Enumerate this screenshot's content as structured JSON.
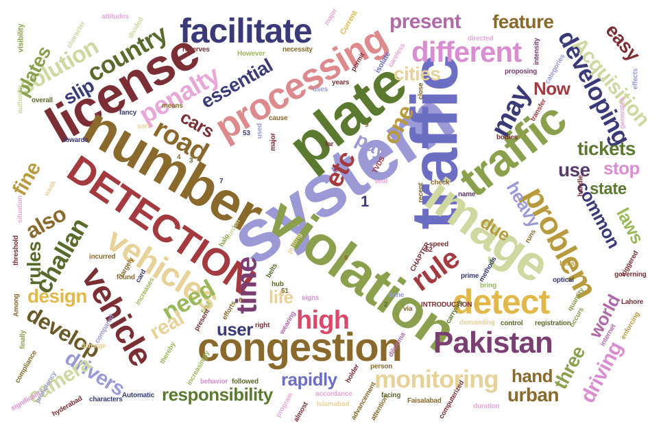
{
  "words": [
    {
      "text": "system",
      "color": "#9b9ad6"
    },
    {
      "text": "traffic",
      "color": "#6b6ec2"
    },
    {
      "text": "plate",
      "color": "#5b7a30"
    },
    {
      "text": "license",
      "color": "#7b2f35"
    },
    {
      "text": "number",
      "color": "#8a6a2c"
    },
    {
      "text": "violation",
      "color": "#8aa04d"
    },
    {
      "text": "DETECTION",
      "color": "#a33a3f"
    },
    {
      "text": "congestion",
      "color": "#8a6a2c"
    },
    {
      "text": "image",
      "color": "#cfd8a0"
    },
    {
      "text": "facilitate",
      "color": "#3a3a78"
    },
    {
      "text": "processing",
      "color": "#dd8a8f"
    },
    {
      "text": "vehicles",
      "color": "#e7d29a"
    },
    {
      "text": "vehicle",
      "color": "#7b2f35"
    },
    {
      "text": "traffic",
      "color": "#8aa04d"
    },
    {
      "text": "Pakistan",
      "color": "#7b3e73"
    },
    {
      "text": "detect",
      "color": "#e2b84a"
    },
    {
      "text": "problem",
      "color": "#b89b3e"
    },
    {
      "text": "different",
      "color": "#d88ed0"
    },
    {
      "text": "road",
      "color": "#8a6a2c"
    },
    {
      "text": "penalty",
      "color": "#e7a8d8"
    },
    {
      "text": "rule",
      "color": "#a33a3f"
    },
    {
      "text": "time",
      "color": "#7b3e73"
    },
    {
      "text": "challan",
      "color": "#5b6a2a"
    },
    {
      "text": "monitoring",
      "color": "#e7d29a"
    },
    {
      "text": "country",
      "color": "#5b6a2a"
    },
    {
      "text": "solution",
      "color": "#cfd8a0"
    },
    {
      "text": "developing",
      "color": "#3a3a78"
    },
    {
      "text": "may",
      "color": "#3a3a78"
    },
    {
      "text": "Acquisition",
      "color": "#cfd8a0"
    },
    {
      "text": "high",
      "color": "#d94a6a"
    },
    {
      "text": "need",
      "color": "#9bb85a"
    },
    {
      "text": "develop",
      "color": "#6b5a28"
    },
    {
      "text": "etc",
      "color": "#a33a3f"
    },
    {
      "text": "essential",
      "color": "#3a3a78"
    },
    {
      "text": "responsibility",
      "color": "#5b7a30"
    },
    {
      "text": "rapidly",
      "color": "#6b6ec2"
    },
    {
      "text": "drivers",
      "color": "#9b9ad6"
    },
    {
      "text": "camera",
      "color": "#cfd8a0"
    },
    {
      "text": "design",
      "color": "#e2b84a"
    },
    {
      "text": "fine",
      "color": "#b89b3e"
    },
    {
      "text": "also",
      "color": "#8a6a2c"
    },
    {
      "text": "rules",
      "color": "#5b6a2a"
    },
    {
      "text": "present",
      "color": "#b06aa8"
    },
    {
      "text": "feature",
      "color": "#8a6a2c"
    },
    {
      "text": "cities",
      "color": "#e7d29a"
    },
    {
      "text": "one",
      "color": "#b89b3e"
    },
    {
      "text": "pay",
      "color": "#9b9ad6"
    },
    {
      "text": "Now",
      "color": "#a33a3f"
    },
    {
      "text": "easy",
      "color": "#7b2f35"
    },
    {
      "text": "tickets",
      "color": "#5b7a30"
    },
    {
      "text": "use",
      "color": "#5a3a6a"
    },
    {
      "text": "stop",
      "color": "#d88ed0"
    },
    {
      "text": "state",
      "color": "#5b7a30"
    },
    {
      "text": "heavy",
      "color": "#9b9ad6"
    },
    {
      "text": "common",
      "color": "#3a3a78"
    },
    {
      "text": "laws",
      "color": "#9bb85a"
    },
    {
      "text": "due",
      "color": "#b89b3e"
    },
    {
      "text": "plates",
      "color": "#8aa04d"
    },
    {
      "text": "slip",
      "color": "#3a3a78"
    },
    {
      "text": "cars",
      "color": "#7b2f35"
    },
    {
      "text": "real",
      "color": "#e7d29a"
    },
    {
      "text": "life",
      "color": "#e7d29a"
    },
    {
      "text": "user",
      "color": "#3a3a78"
    },
    {
      "text": "hand",
      "color": "#8a6a2c"
    },
    {
      "text": "urban",
      "color": "#8a6a2c"
    },
    {
      "text": "three",
      "color": "#8aa04d"
    },
    {
      "text": "driving",
      "color": "#d88ed0"
    },
    {
      "text": "world",
      "color": "#b06aa8"
    },
    {
      "text": "1",
      "color": "#3a3a78"
    },
    {
      "text": "attitudes",
      "color": "#e7a8d8"
    },
    {
      "text": "divided",
      "color": "#cfd8a0"
    },
    {
      "text": "character",
      "color": "#cfd8a0"
    },
    {
      "text": "visibility",
      "color": "#8aa04d"
    },
    {
      "text": "major",
      "color": "#e7a8d8"
    },
    {
      "text": "Current",
      "color": "#e2b84a"
    },
    {
      "text": "reserves",
      "color": "#7b2f35"
    },
    {
      "text": "However",
      "color": "#9bb85a"
    },
    {
      "text": "necessity",
      "color": "#8a6a2c"
    },
    {
      "text": "permit",
      "color": "#7b2f35"
    },
    {
      "text": "isolate",
      "color": "#6b6ec2"
    },
    {
      "text": "careless",
      "color": "#e7a8d8"
    },
    {
      "text": "directed",
      "color": "#e7a8d8"
    },
    {
      "text": "intensity",
      "color": "#7b3e73"
    },
    {
      "text": "proposing",
      "color": "#7b3e73"
    },
    {
      "text": "categories",
      "color": "#9b9ad6"
    },
    {
      "text": "fancy",
      "color": "#3a3a78"
    },
    {
      "text": "means",
      "color": "#8a6a2c"
    },
    {
      "text": "towards",
      "color": "#3a3a78"
    },
    {
      "text": "bodies",
      "color": "#7b2f35"
    },
    {
      "text": "transfer",
      "color": "#a33a3f"
    },
    {
      "text": "overall",
      "color": "#5b6a2a"
    },
    {
      "text": "authority",
      "color": "#cfd8a0"
    },
    {
      "text": "uses",
      "color": "#9b9ad6"
    },
    {
      "text": "years",
      "color": "#7b2f35"
    },
    {
      "text": "close",
      "color": "#8a6a2c"
    },
    {
      "text": "check",
      "color": "#8a6a2c"
    },
    {
      "text": "name",
      "color": "#5a3a6a"
    },
    {
      "text": "handle",
      "color": "#7b2f35"
    },
    {
      "text": "generates",
      "color": "#e7a8d8"
    },
    {
      "text": "effects",
      "color": "#9b9ad6"
    },
    {
      "text": "sort",
      "color": "#e7d29a"
    },
    {
      "text": "cause",
      "color": "#8a6a2c"
    },
    {
      "text": "used",
      "color": "#9b9ad6"
    },
    {
      "text": "major",
      "color": "#7b2f35"
    },
    {
      "text": "far",
      "color": "#7b2f35"
    },
    {
      "text": "seat",
      "color": "#e7a8d8"
    },
    {
      "text": "TVDS",
      "color": "#a33a3f"
    },
    {
      "text": "recent",
      "color": "#8a6a2c"
    },
    {
      "text": "prime",
      "color": "#3a3a78"
    },
    {
      "text": "methods",
      "color": "#3a3a78"
    },
    {
      "text": "speed",
      "color": "#7b2f35"
    },
    {
      "text": "CHAPTER",
      "color": "#7b2f35"
    },
    {
      "text": "52",
      "color": "#7b2f35"
    },
    {
      "text": "runs",
      "color": "#8a6a2c"
    },
    {
      "text": "triggered",
      "color": "#7b2f35"
    },
    {
      "text": "governing",
      "color": "#7b2f35"
    },
    {
      "text": "optical",
      "color": "#3a3a78"
    },
    {
      "text": "beast",
      "color": "#b89b3e"
    },
    {
      "text": "quantity",
      "color": "#8aa04d"
    },
    {
      "text": "occurs",
      "color": "#8aa04d"
    },
    {
      "text": "Lahore",
      "color": "#7b2f35"
    },
    {
      "text": "registration",
      "color": "#5b6a2a"
    },
    {
      "text": "control",
      "color": "#5b6a2a"
    },
    {
      "text": "demanding",
      "color": "#e7d29a"
    },
    {
      "text": "INTRODUCTION",
      "color": "#7b2f35"
    },
    {
      "text": "carrying",
      "color": "#5b7a30"
    },
    {
      "text": "done",
      "color": "#9b9ad6"
    },
    {
      "text": "via",
      "color": "#8a6a2c"
    },
    {
      "text": "bring",
      "color": "#9bb85a"
    },
    {
      "text": "enforcing",
      "color": "#b89b3e"
    },
    {
      "text": "internet",
      "color": "#b06aa8"
    },
    {
      "text": "dilemma",
      "color": "#b06aa8"
    },
    {
      "text": "person",
      "color": "#8a6a2c"
    },
    {
      "text": "holder",
      "color": "#7b2f35"
    },
    {
      "text": "advancement",
      "color": "#8a6a2c"
    },
    {
      "text": "attention",
      "color": "#8a6a2c"
    },
    {
      "text": "Islamabad",
      "color": "#e7d29a"
    },
    {
      "text": "facing",
      "color": "#5b6a2a"
    },
    {
      "text": "Faisalabad",
      "color": "#8a6a2c"
    },
    {
      "text": "computerized",
      "color": "#7b2f35"
    },
    {
      "text": "duration",
      "color": "#e7a8d8"
    },
    {
      "text": "accordance",
      "color": "#e7a8d8"
    },
    {
      "text": "almost",
      "color": "#7b2f35"
    },
    {
      "text": "program",
      "color": "#e7a8d8"
    },
    {
      "text": "followed",
      "color": "#5b6a2a"
    },
    {
      "text": "behavior",
      "color": "#d88ed0"
    },
    {
      "text": "increasingly",
      "color": "#9bb85a"
    },
    {
      "text": "Automatic",
      "color": "#3a3a78"
    },
    {
      "text": "characters",
      "color": "#3a3a78"
    },
    {
      "text": "thereby",
      "color": "#9bb85a"
    },
    {
      "text": "significant",
      "color": "#d88ed0"
    },
    {
      "text": "hyderabad",
      "color": "#7b2f35"
    },
    {
      "text": "proficiency",
      "color": "#9b9ad6"
    },
    {
      "text": "compliance",
      "color": "#8a6a2c"
    },
    {
      "text": "finally",
      "color": "#8aa04d"
    },
    {
      "text": "Among",
      "color": "#8a6a2c"
    },
    {
      "text": "threshold",
      "color": "#7b2f35"
    },
    {
      "text": "situation",
      "color": "#e7a8d8"
    },
    {
      "text": "weak",
      "color": "#e7d29a"
    },
    {
      "text": "found",
      "color": "#8a6a2c"
    },
    {
      "text": "increases",
      "color": "#9bb85a"
    },
    {
      "text": "largely",
      "color": "#8a6a2c"
    },
    {
      "text": "incurred",
      "color": "#8a6a2c"
    },
    {
      "text": "card",
      "color": "#3a3a78"
    },
    {
      "text": "compared",
      "color": "#9b9ad6"
    },
    {
      "text": "damage",
      "color": "#e7d29a"
    },
    {
      "text": "efforts",
      "color": "#8a6a2c"
    },
    {
      "text": "first",
      "color": "#9bb85a"
    },
    {
      "text": "right",
      "color": "#7b2f35"
    },
    {
      "text": "wearing",
      "color": "#b06aa8"
    },
    {
      "text": "signs",
      "color": "#d88ed0"
    },
    {
      "text": "hub",
      "color": "#5b6a2a"
    },
    {
      "text": "belts",
      "color": "#5b6a2a"
    },
    {
      "text": "burden",
      "color": "#cfd8a0"
    },
    {
      "text": "halo",
      "color": "#8aa04d"
    },
    {
      "text": "putting",
      "color": "#e7d29a"
    },
    {
      "text": "present",
      "color": "#7b2f35"
    },
    {
      "text": "53",
      "color": "#3a3a78"
    },
    {
      "text": "51",
      "color": "#8a6a2c"
    },
    {
      "text": "8",
      "color": "#8a6a2c"
    },
    {
      "text": "9",
      "color": "#8a6a2c"
    },
    {
      "text": "7",
      "color": "#3a3a78"
    },
    {
      "text": "4",
      "color": "#8a6a2c"
    },
    {
      "text": "3",
      "color": "#5b6a2a"
    },
    {
      "text": "6",
      "color": "#8a6a2c"
    },
    {
      "text": "2",
      "color": "#5b6a2a"
    }
  ]
}
